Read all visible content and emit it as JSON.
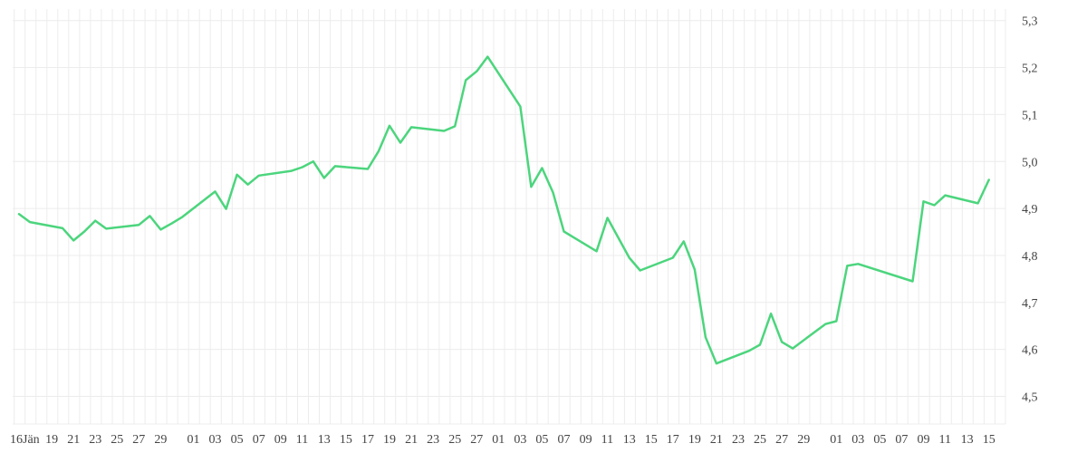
{
  "chart_data": {
    "type": "line",
    "title": "",
    "xlabel": "",
    "ylabel": "",
    "ylim": [
      4.5,
      5.3
    ],
    "xlim": [
      "01-16",
      "04-15"
    ],
    "grid": true,
    "y_axis_side": "right",
    "line_color": "#4cd57d",
    "grid_color": "#ececec",
    "y_ticks": [
      "4,5",
      "4,6",
      "4,7",
      "4,8",
      "4,9",
      "5,0",
      "5,1",
      "5,2",
      "5,3"
    ],
    "x_ticks": [
      {
        "label": "16Jän",
        "date": "01-16"
      },
      {
        "label": "19",
        "date": "01-19"
      },
      {
        "label": "21",
        "date": "01-21"
      },
      {
        "label": "23",
        "date": "01-23"
      },
      {
        "label": "25",
        "date": "01-25"
      },
      {
        "label": "27",
        "date": "01-27"
      },
      {
        "label": "29",
        "date": "01-29"
      },
      {
        "label": "01",
        "date": "02-01"
      },
      {
        "label": "03",
        "date": "02-03"
      },
      {
        "label": "05",
        "date": "02-05"
      },
      {
        "label": "07",
        "date": "02-07"
      },
      {
        "label": "09",
        "date": "02-09"
      },
      {
        "label": "11",
        "date": "02-11"
      },
      {
        "label": "13",
        "date": "02-13"
      },
      {
        "label": "15",
        "date": "02-15"
      },
      {
        "label": "17",
        "date": "02-17"
      },
      {
        "label": "19",
        "date": "02-19"
      },
      {
        "label": "21",
        "date": "02-21"
      },
      {
        "label": "23",
        "date": "02-23"
      },
      {
        "label": "25",
        "date": "02-25"
      },
      {
        "label": "27",
        "date": "02-27"
      },
      {
        "label": "01",
        "date": "03-01"
      },
      {
        "label": "03",
        "date": "03-03"
      },
      {
        "label": "05",
        "date": "03-05"
      },
      {
        "label": "07",
        "date": "03-07"
      },
      {
        "label": "09",
        "date": "03-09"
      },
      {
        "label": "11",
        "date": "03-11"
      },
      {
        "label": "13",
        "date": "03-13"
      },
      {
        "label": "15",
        "date": "03-15"
      },
      {
        "label": "17",
        "date": "03-17"
      },
      {
        "label": "19",
        "date": "03-19"
      },
      {
        "label": "21",
        "date": "03-21"
      },
      {
        "label": "23",
        "date": "03-23"
      },
      {
        "label": "25",
        "date": "03-25"
      },
      {
        "label": "27",
        "date": "03-27"
      },
      {
        "label": "29",
        "date": "03-29"
      },
      {
        "label": "01",
        "date": "04-01"
      },
      {
        "label": "03",
        "date": "04-03"
      },
      {
        "label": "05",
        "date": "04-05"
      },
      {
        "label": "07",
        "date": "04-07"
      },
      {
        "label": "09",
        "date": "04-09"
      },
      {
        "label": "11",
        "date": "04-11"
      },
      {
        "label": "13",
        "date": "04-13"
      },
      {
        "label": "15",
        "date": "04-15"
      }
    ],
    "series": [
      {
        "x": [
          "01-16",
          "01-17",
          "01-20",
          "01-21",
          "01-22",
          "01-23",
          "01-24",
          "01-27",
          "01-28",
          "01-29",
          "01-30",
          "01-31",
          "02-03",
          "02-04",
          "02-05",
          "02-06",
          "02-07",
          "02-10",
          "02-11",
          "02-12",
          "02-13",
          "02-14",
          "02-17",
          "02-18",
          "02-19",
          "02-20",
          "02-21",
          "02-24",
          "02-25",
          "02-26",
          "02-27",
          "02-28",
          "03-03",
          "03-04",
          "03-05",
          "03-06",
          "03-07",
          "03-10",
          "03-11",
          "03-13",
          "03-14",
          "03-17",
          "03-18",
          "03-19",
          "03-20",
          "03-21",
          "03-24",
          "03-25",
          "03-26",
          "03-27",
          "03-28",
          "03-31",
          "04-01",
          "04-02",
          "04-03",
          "04-08",
          "04-09",
          "04-10",
          "04-11",
          "04-14",
          "04-15"
        ],
        "y": [
          4.888,
          4.871,
          4.858,
          4.832,
          4.851,
          4.874,
          4.857,
          4.865,
          4.884,
          4.855,
          4.868,
          4.882,
          4.936,
          4.899,
          4.972,
          4.951,
          4.97,
          4.98,
          4.988,
          5.0,
          4.965,
          4.99,
          4.984,
          5.022,
          5.076,
          5.04,
          5.073,
          5.065,
          5.075,
          5.173,
          5.192,
          5.223,
          5.117,
          4.946,
          4.986,
          4.934,
          4.851,
          4.809,
          4.88,
          4.795,
          4.768,
          4.795,
          4.83,
          4.77,
          4.626,
          4.57,
          4.597,
          4.61,
          4.676,
          4.616,
          4.602,
          4.654,
          4.66,
          4.778,
          4.782,
          4.745,
          4.915,
          4.907,
          4.928,
          4.911,
          4.961
        ]
      }
    ]
  }
}
